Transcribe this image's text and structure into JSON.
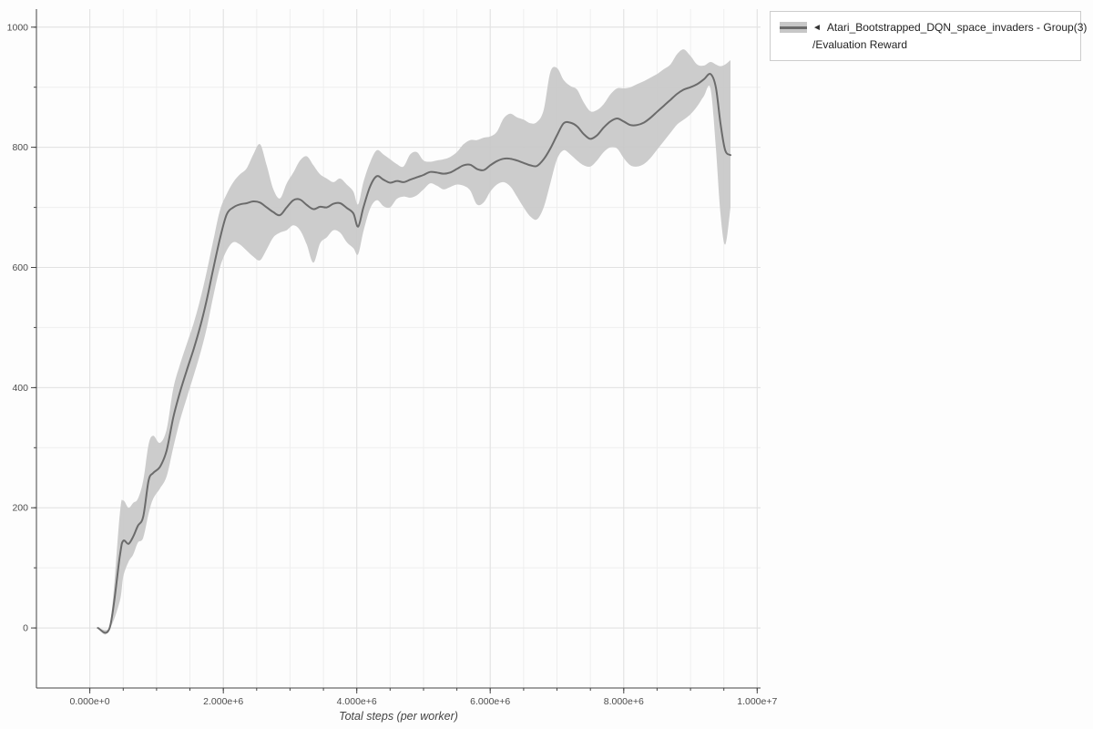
{
  "page": {
    "background": "#fdfdfd"
  },
  "legend": {
    "marker": "◄",
    "series_name": "Atari_Bootstrapped_DQN_space_invaders - Group(3)",
    "metric": "/Evaluation Reward",
    "swatch_band_color": "#c7c7c7",
    "swatch_line_color": "#6b6b6b"
  },
  "chart_data": {
    "type": "line",
    "title": "",
    "xlabel": "Total steps (per worker)",
    "ylabel": "",
    "grid": true,
    "legend_position": "top-right-outside",
    "x_range": [
      -800000,
      10050000
    ],
    "y_range": [
      -100,
      1030
    ],
    "x_minor_step": 500000,
    "y_minor_step": 100,
    "x_ticks": [
      {
        "value": 0,
        "label": "0.000e+0"
      },
      {
        "value": 2000000,
        "label": "2.000e+6"
      },
      {
        "value": 4000000,
        "label": "4.000e+6"
      },
      {
        "value": 6000000,
        "label": "6.000e+6"
      },
      {
        "value": 8000000,
        "label": "8.000e+6"
      },
      {
        "value": 10000000,
        "label": "1.000e+7"
      }
    ],
    "y_ticks": [
      {
        "value": 0,
        "label": "0"
      },
      {
        "value": 200,
        "label": "200"
      },
      {
        "value": 400,
        "label": "400"
      },
      {
        "value": 600,
        "label": "600"
      },
      {
        "value": 800,
        "label": "800"
      },
      {
        "value": 1000,
        "label": "1000"
      }
    ],
    "colors": {
      "line": "#6b6b6b",
      "band": "#c7c7c7",
      "grid_minor": "#efefef",
      "grid_major": "#e2e2e2",
      "axis": "#444444",
      "tick_label": "#4c4c4c",
      "axis_label": "#444444"
    },
    "series": [
      {
        "name": "Atari_Bootstrapped_DQN_space_invaders - Group(3)/Evaluation Reward",
        "color": "#6b6b6b",
        "band_color": "#c7c7c7",
        "x": [
          120000,
          300000,
          450000,
          500000,
          580000,
          650000,
          720000,
          800000,
          880000,
          950000,
          1050000,
          1150000,
          1250000,
          1350000,
          1450000,
          1550000,
          1650000,
          1750000,
          1850000,
          1950000,
          2050000,
          2150000,
          2250000,
          2350000,
          2450000,
          2550000,
          2650000,
          2750000,
          2850000,
          2950000,
          3050000,
          3150000,
          3250000,
          3350000,
          3450000,
          3550000,
          3650000,
          3750000,
          3850000,
          3950000,
          4020000,
          4100000,
          4200000,
          4300000,
          4400000,
          4500000,
          4600000,
          4700000,
          4800000,
          4900000,
          5000000,
          5100000,
          5200000,
          5300000,
          5400000,
          5500000,
          5600000,
          5700000,
          5800000,
          5900000,
          6000000,
          6100000,
          6200000,
          6300000,
          6400000,
          6500000,
          6600000,
          6700000,
          6800000,
          6900000,
          7000000,
          7100000,
          7200000,
          7300000,
          7400000,
          7500000,
          7600000,
          7700000,
          7800000,
          7900000,
          8000000,
          8100000,
          8200000,
          8300000,
          8400000,
          8500000,
          8600000,
          8700000,
          8800000,
          8900000,
          9000000,
          9100000,
          9200000,
          9300000,
          9380000,
          9450000,
          9520000,
          9600000
        ],
        "mean": [
          0,
          1,
          120,
          145,
          140,
          152,
          170,
          185,
          245,
          258,
          268,
          295,
          350,
          392,
          428,
          462,
          500,
          545,
          598,
          648,
          688,
          700,
          705,
          707,
          710,
          708,
          700,
          692,
          687,
          700,
          712,
          713,
          704,
          697,
          701,
          700,
          706,
          707,
          699,
          690,
          668,
          700,
          735,
          752,
          746,
          741,
          744,
          742,
          746,
          750,
          754,
          759,
          758,
          756,
          758,
          764,
          770,
          771,
          764,
          762,
          770,
          777,
          781,
          781,
          778,
          774,
          770,
          769,
          780,
          798,
          820,
          840,
          841,
          835,
          822,
          814,
          820,
          833,
          843,
          848,
          843,
          837,
          837,
          841,
          849,
          859,
          869,
          879,
          889,
          896,
          900,
          905,
          913,
          922,
          900,
          840,
          795,
          787
        ],
        "lower": [
          0,
          0,
          45,
          85,
          110,
          122,
          142,
          150,
          190,
          215,
          232,
          252,
          300,
          345,
          382,
          418,
          455,
          498,
          552,
          600,
          628,
          642,
          638,
          628,
          618,
          612,
          630,
          650,
          658,
          662,
          670,
          662,
          638,
          608,
          640,
          650,
          662,
          658,
          642,
          632,
          622,
          660,
          698,
          712,
          702,
          700,
          714,
          718,
          716,
          720,
          730,
          740,
          736,
          730,
          734,
          738,
          736,
          728,
          705,
          708,
          726,
          738,
          742,
          735,
          718,
          700,
          685,
          680,
          700,
          740,
          780,
          795,
          788,
          778,
          770,
          768,
          778,
          792,
          800,
          798,
          782,
          770,
          768,
          772,
          782,
          796,
          810,
          824,
          838,
          846,
          855,
          868,
          885,
          898,
          800,
          690,
          638,
          700
        ],
        "upper": [
          0,
          4,
          190,
          212,
          200,
          208,
          215,
          245,
          305,
          320,
          308,
          330,
          398,
          438,
          472,
          505,
          545,
          592,
          645,
          695,
          722,
          742,
          755,
          765,
          788,
          805,
          770,
          730,
          715,
          740,
          758,
          778,
          785,
          770,
          755,
          748,
          742,
          748,
          738,
          726,
          705,
          742,
          775,
          795,
          788,
          780,
          772,
          768,
          788,
          792,
          778,
          776,
          778,
          780,
          784,
          792,
          805,
          812,
          812,
          816,
          818,
          826,
          848,
          856,
          850,
          846,
          840,
          842,
          862,
          925,
          932,
          912,
          902,
          896,
          875,
          860,
          862,
          872,
          888,
          898,
          898,
          900,
          905,
          910,
          916,
          922,
          930,
          938,
          955,
          963,
          952,
          938,
          936,
          942,
          938,
          935,
          938,
          945
        ]
      }
    ]
  }
}
